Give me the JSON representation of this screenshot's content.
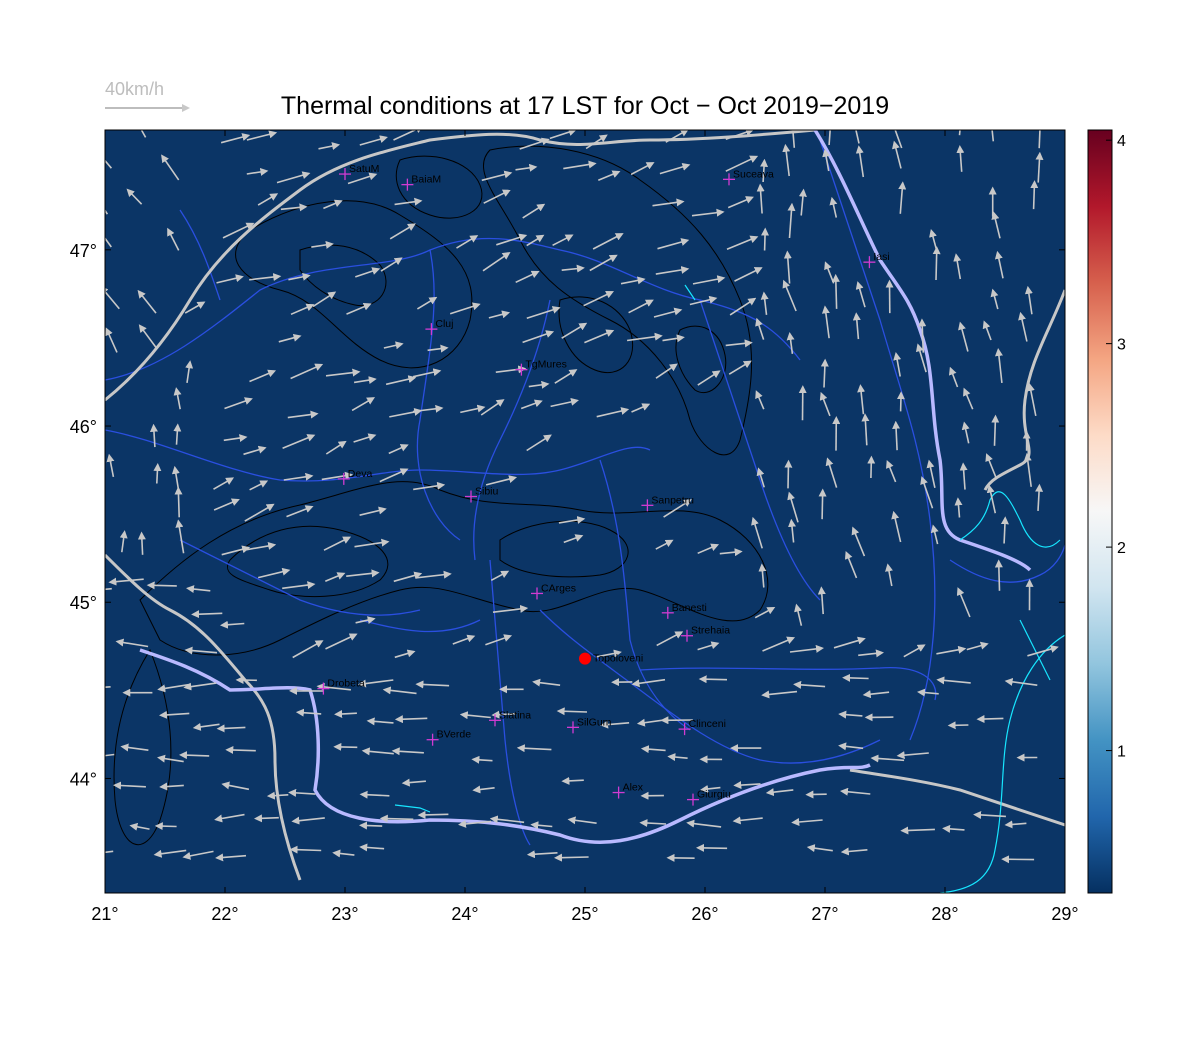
{
  "title": "Thermal conditions at 17 LST for Oct − Oct  2019−2019",
  "wind_reference": {
    "label": "40km/h",
    "speed_kmh": 40
  },
  "map": {
    "lon_range": [
      21,
      29
    ],
    "lat_range": [
      43.35,
      47.68
    ],
    "x_ticks": [
      "21°",
      "22°",
      "23°",
      "24°",
      "25°",
      "26°",
      "27°",
      "28°",
      "29°"
    ],
    "y_ticks": [
      "44°",
      "45°",
      "46°",
      "47°"
    ],
    "background_color": "#0b3566",
    "contour_color": "#000000",
    "river_color": "#2a4fe0",
    "border_color": "#c7c7c7",
    "coast_color": "#17e6ff",
    "wind_arrow_color": "#c8c8c8"
  },
  "colorbar": {
    "ticks": [
      "1",
      "2",
      "3",
      "4"
    ],
    "range": [
      0.3,
      4.05
    ],
    "colors": [
      "#053061",
      "#2166ac",
      "#4393c3",
      "#92c5de",
      "#d1e5f0",
      "#f7f7f7",
      "#fddbc7",
      "#f4a582",
      "#d6604d",
      "#b2182b",
      "#67001f"
    ]
  },
  "stations": [
    {
      "name": "SatuM",
      "lon": 23.0,
      "lat": 47.43
    },
    {
      "name": "BaiaM",
      "lon": 23.52,
      "lat": 47.37
    },
    {
      "name": "Suceava",
      "lon": 26.2,
      "lat": 47.4
    },
    {
      "name": "Iasi",
      "lon": 27.37,
      "lat": 46.93
    },
    {
      "name": "Cluj",
      "lon": 23.72,
      "lat": 46.55
    },
    {
      "name": "TgMures",
      "lon": 24.47,
      "lat": 46.32
    },
    {
      "name": "Deva",
      "lon": 22.99,
      "lat": 45.7
    },
    {
      "name": "Sibiu",
      "lon": 24.05,
      "lat": 45.6
    },
    {
      "name": "Sanpetru",
      "lon": 25.52,
      "lat": 45.55
    },
    {
      "name": "CArges",
      "lon": 24.6,
      "lat": 45.05
    },
    {
      "name": "Banesti",
      "lon": 25.69,
      "lat": 44.94
    },
    {
      "name": "Strehaia",
      "lon": 25.85,
      "lat": 44.81
    },
    {
      "name": "Drobeta",
      "lon": 22.82,
      "lat": 44.51
    },
    {
      "name": "Slatina",
      "lon": 24.25,
      "lat": 44.33
    },
    {
      "name": "SilGum",
      "lon": 24.9,
      "lat": 44.29
    },
    {
      "name": "Clinceni",
      "lon": 25.83,
      "lat": 44.28
    },
    {
      "name": "BVerde",
      "lon": 23.73,
      "lat": 44.22
    },
    {
      "name": "Alex",
      "lon": 25.28,
      "lat": 43.92
    },
    {
      "name": "Giurgiu",
      "lon": 25.9,
      "lat": 43.88
    }
  ],
  "highlight": {
    "name": "Topoloveni",
    "lon": 25.0,
    "lat": 44.68,
    "color": "#ff0000"
  }
}
